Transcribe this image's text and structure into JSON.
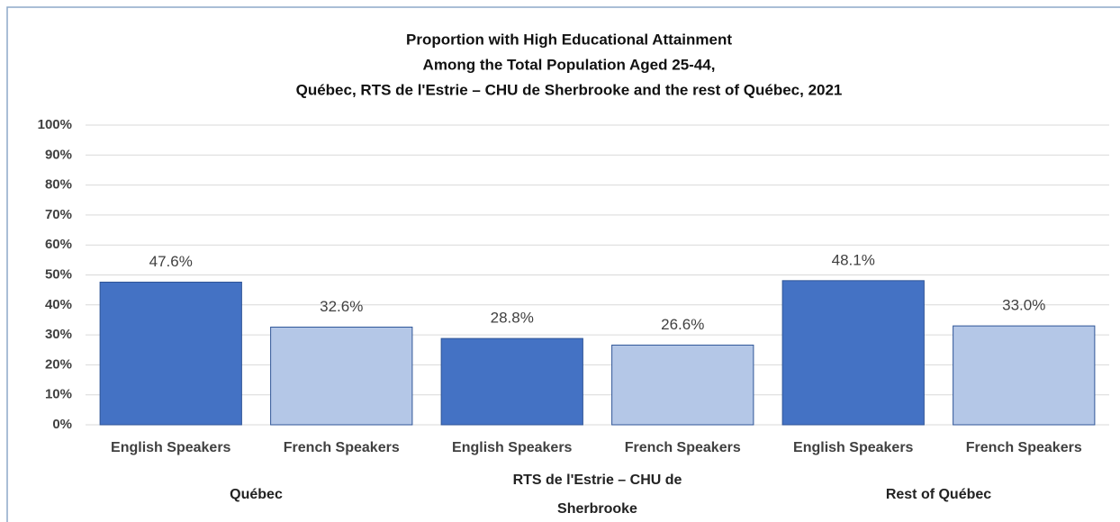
{
  "chart_data": {
    "type": "bar",
    "title": [
      "Proportion with High Educational  Attainment",
      "Among the Total Population Aged 25-44,",
      "Québec, RTS de l'Estrie – CHU de Sherbrooke and the rest of Québec, 2021"
    ],
    "categories": [
      "English Speakers",
      "French Speakers",
      "English Speakers",
      "French Speakers",
      "English Speakers",
      "French Speakers"
    ],
    "groups": [
      "Québec",
      "RTS de l'Estrie – CHU de Sherbrooke",
      "Rest of Québec"
    ],
    "values": [
      47.6,
      32.6,
      28.8,
      26.6,
      48.1,
      33.0
    ],
    "value_labels": [
      "47.6%",
      "32.6%",
      "28.8%",
      "26.6%",
      "48.1%",
      "33.0%"
    ],
    "colors": [
      "#4472c4",
      "#b4c7e7",
      "#4472c4",
      "#b4c7e7",
      "#4472c4",
      "#b4c7e7"
    ],
    "ylim": [
      0,
      100
    ],
    "yticks": [
      {
        "value": 0,
        "label": "0%"
      },
      {
        "value": 10,
        "label": "10%"
      },
      {
        "value": 20,
        "label": "20%"
      },
      {
        "value": 30,
        "label": "30%"
      },
      {
        "value": 40,
        "label": "40%"
      },
      {
        "value": 50,
        "label": "50%"
      },
      {
        "value": 60,
        "label": "60%"
      },
      {
        "value": 70,
        "label": "70%"
      },
      {
        "value": 80,
        "label": "80%"
      },
      {
        "value": 90,
        "label": "90%"
      },
      {
        "value": 100,
        "label": "100%"
      }
    ],
    "grid": true
  }
}
